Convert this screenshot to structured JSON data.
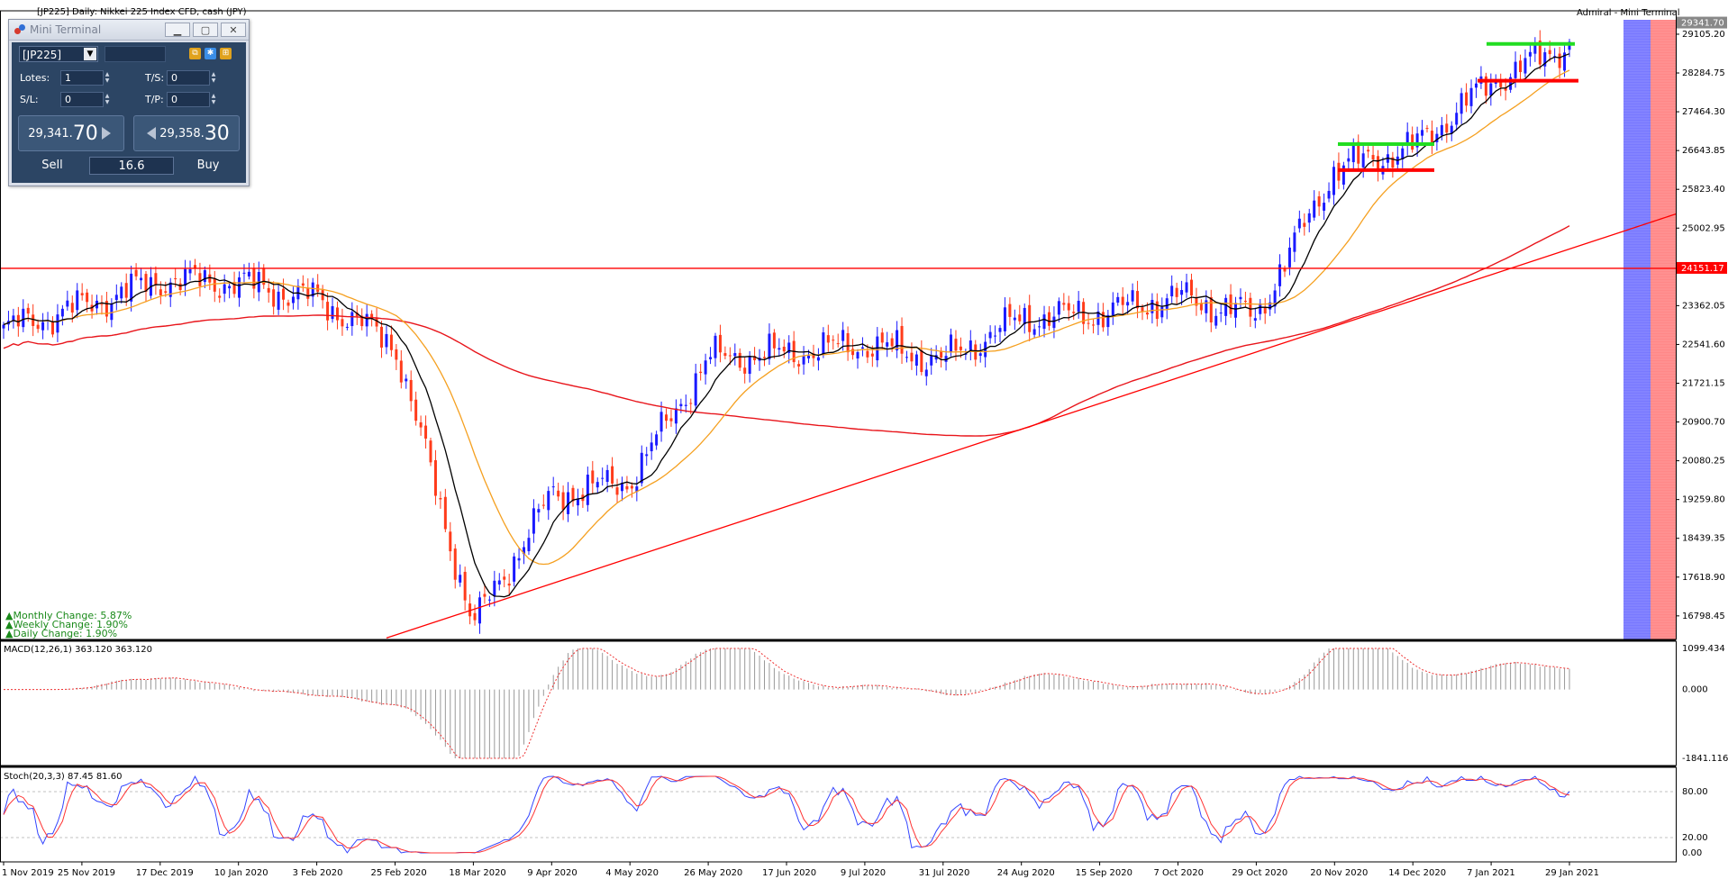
{
  "chart_header": {
    "symbol_info": "[JP225] Daily: Nikkei 225 Index CFD, cash (JPY)",
    "broker_label": "Admiral - Mini Terminal"
  },
  "price_scale": {
    "labels": [
      "29105.20",
      "28284.75",
      "27464.30",
      "26643.85",
      "25823.40",
      "25002.95",
      "23362.05",
      "22541.60",
      "21721.15",
      "20900.70",
      "20080.25",
      "19259.80",
      "18439.35",
      "17618.90",
      "16798.45"
    ],
    "current_price_label": "29341.70",
    "hline_label": "24151.17"
  },
  "date_axis": [
    "1 Nov 2019",
    "25 Nov 2019",
    "17 Dec 2019",
    "10 Jan 2020",
    "3 Feb 2020",
    "25 Feb 2020",
    "18 Mar 2020",
    "9 Apr 2020",
    "4 May 2020",
    "26 May 2020",
    "17 Jun 2020",
    "9 Jul 2020",
    "31 Jul 2020",
    "24 Aug 2020",
    "15 Sep 2020",
    "7 Oct 2020",
    "29 Oct 2020",
    "20 Nov 2020",
    "14 Dec 2020",
    "7 Jan 2021",
    "29 Jan 2021"
  ],
  "changes": {
    "monthly": "Monthly Change: 5.87%",
    "weekly": "Weekly Change: 1.90%",
    "daily": "Daily Change: 1.90%"
  },
  "macd": {
    "label": "MACD(12,26,1) 363.120 363.120",
    "scale": [
      "1099.434",
      "0.000",
      "-1841.116"
    ]
  },
  "stoch": {
    "label": "Stoch(20,3,3) 87.45 81.60",
    "scale": [
      "80.00",
      "20.00",
      "0.00"
    ]
  },
  "colors": {
    "bull": "#1a1aff",
    "bear": "#ff3b1a",
    "ma_fast": "#000000",
    "ma_mid": "#f5a020",
    "ma_slow": "#e8151b",
    "support": "#ff0000",
    "resistance": "#22dd22",
    "blue_zone": "#6a6aff",
    "red_zone": "#ff7b7b"
  },
  "chart_data": {
    "type": "candlestick",
    "title": "[JP225] Daily: Nikkei 225 Index CFD, cash (JPY)",
    "x": [
      "1 Nov 2019",
      "25 Nov 2019",
      "17 Dec 2019",
      "10 Jan 2020",
      "3 Feb 2020",
      "25 Feb 2020",
      "18 Mar 2020",
      "9 Apr 2020",
      "4 May 2020",
      "26 May 2020",
      "17 Jun 2020",
      "9 Jul 2020",
      "31 Jul 2020",
      "24 Aug 2020",
      "15 Sep 2020",
      "7 Oct 2020",
      "29 Oct 2020",
      "20 Nov 2020",
      "14 Dec 2020",
      "7 Jan 2021",
      "29 Jan 2021"
    ],
    "close_approx": [
      22850,
      23350,
      23900,
      23850,
      23500,
      22550,
      16600,
      19350,
      19650,
      22250,
      22350,
      22550,
      22200,
      23100,
      23200,
      23550,
      23150,
      26250,
      26700,
      28100,
      28900
    ],
    "ylim": [
      16300,
      29600
    ],
    "hlines": [
      24151.17
    ],
    "annotations": {
      "resistance_1": [
        26780,
        28900
      ],
      "support_1": [
        26230,
        28120
      ]
    },
    "indicators": [
      "MACD(12,26,1)",
      "Stoch(20,3,3)"
    ]
  },
  "mini_terminal": {
    "title": "Mini Terminal",
    "symbol": "[JP225]",
    "lots_label": "Lotes:",
    "lots_value": "1",
    "ts_label": "T/S:",
    "ts_value": "0",
    "sl_label": "S/L:",
    "sl_value": "0",
    "tp_label": "T/P:",
    "tp_value": "0",
    "sell_price_small": "29,341.",
    "sell_price_big": "70",
    "buy_price_small": "29,358.",
    "buy_price_big": "30",
    "spread": "16.6",
    "sell_label": "Sell",
    "buy_label": "Buy"
  }
}
